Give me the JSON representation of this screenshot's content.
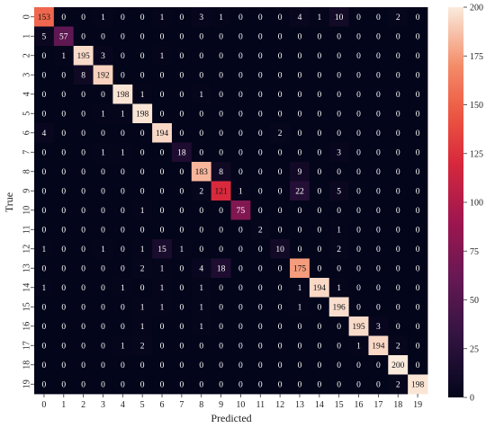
{
  "chart_data": {
    "type": "heatmap",
    "title": "",
    "xlabel": "Predicted",
    "ylabel": "True",
    "x_ticks": [
      "0",
      "1",
      "2",
      "3",
      "4",
      "5",
      "6",
      "7",
      "8",
      "9",
      "10",
      "11",
      "12",
      "13",
      "14",
      "15",
      "16",
      "17",
      "18",
      "19"
    ],
    "y_ticks": [
      "0",
      "1",
      "2",
      "3",
      "4",
      "5",
      "6",
      "7",
      "8",
      "9",
      "10",
      "11",
      "12",
      "13",
      "14",
      "15",
      "16",
      "17",
      "18",
      "19"
    ],
    "colorbar": {
      "min": 0,
      "max": 200,
      "ticks": [
        "0",
        "25",
        "50",
        "75",
        "100",
        "125",
        "150",
        "175",
        "200"
      ]
    },
    "colormap": "rocket",
    "matrix": [
      [
        153,
        0,
        0,
        1,
        0,
        0,
        1,
        0,
        3,
        1,
        0,
        0,
        0,
        4,
        1,
        10,
        0,
        0,
        2,
        0
      ],
      [
        5,
        57,
        0,
        0,
        0,
        0,
        0,
        0,
        0,
        0,
        0,
        0,
        0,
        0,
        0,
        0,
        0,
        0,
        0,
        0
      ],
      [
        0,
        1,
        195,
        3,
        0,
        0,
        1,
        0,
        0,
        0,
        0,
        0,
        0,
        0,
        0,
        0,
        0,
        0,
        0,
        0
      ],
      [
        0,
        0,
        8,
        192,
        0,
        0,
        0,
        0,
        0,
        0,
        0,
        0,
        0,
        0,
        0,
        0,
        0,
        0,
        0,
        0
      ],
      [
        0,
        0,
        0,
        0,
        198,
        1,
        0,
        0,
        1,
        0,
        0,
        0,
        0,
        0,
        0,
        0,
        0,
        0,
        0,
        0
      ],
      [
        0,
        0,
        0,
        1,
        1,
        198,
        0,
        0,
        0,
        0,
        0,
        0,
        0,
        0,
        0,
        0,
        0,
        0,
        0,
        0
      ],
      [
        4,
        0,
        0,
        0,
        0,
        0,
        194,
        0,
        0,
        0,
        0,
        0,
        2,
        0,
        0,
        0,
        0,
        0,
        0,
        0
      ],
      [
        0,
        0,
        0,
        1,
        1,
        0,
        0,
        18,
        0,
        0,
        0,
        0,
        0,
        0,
        0,
        3,
        0,
        0,
        0,
        0
      ],
      [
        0,
        0,
        0,
        0,
        0,
        0,
        0,
        0,
        183,
        8,
        0,
        0,
        0,
        9,
        0,
        0,
        0,
        0,
        0,
        0
      ],
      [
        0,
        0,
        0,
        0,
        0,
        0,
        0,
        0,
        2,
        121,
        1,
        0,
        0,
        22,
        0,
        5,
        0,
        0,
        0,
        0
      ],
      [
        0,
        0,
        0,
        0,
        0,
        1,
        0,
        0,
        0,
        0,
        75,
        0,
        0,
        0,
        0,
        0,
        0,
        0,
        0,
        0
      ],
      [
        0,
        0,
        0,
        0,
        0,
        0,
        0,
        0,
        0,
        0,
        0,
        2,
        0,
        0,
        0,
        1,
        0,
        0,
        0,
        0
      ],
      [
        1,
        0,
        0,
        1,
        0,
        1,
        15,
        1,
        0,
        0,
        0,
        0,
        10,
        0,
        0,
        2,
        0,
        0,
        0,
        0
      ],
      [
        0,
        0,
        0,
        0,
        0,
        2,
        1,
        0,
        4,
        18,
        0,
        0,
        0,
        175,
        0,
        0,
        0,
        0,
        0,
        0
      ],
      [
        1,
        0,
        0,
        0,
        1,
        0,
        1,
        0,
        1,
        0,
        0,
        0,
        0,
        1,
        194,
        1,
        0,
        0,
        0,
        0
      ],
      [
        0,
        0,
        0,
        0,
        0,
        1,
        1,
        0,
        1,
        0,
        0,
        0,
        0,
        1,
        0,
        196,
        0,
        0,
        0,
        0
      ],
      [
        0,
        0,
        0,
        0,
        0,
        1,
        0,
        0,
        1,
        0,
        0,
        0,
        0,
        0,
        0,
        0,
        195,
        3,
        0,
        0
      ],
      [
        0,
        0,
        0,
        0,
        1,
        2,
        0,
        0,
        0,
        0,
        0,
        0,
        0,
        0,
        0,
        0,
        1,
        194,
        2,
        0
      ],
      [
        0,
        0,
        0,
        0,
        0,
        0,
        0,
        0,
        0,
        0,
        0,
        0,
        0,
        0,
        0,
        0,
        0,
        0,
        200,
        0
      ],
      [
        0,
        0,
        0,
        0,
        0,
        0,
        0,
        0,
        0,
        0,
        0,
        0,
        0,
        0,
        0,
        0,
        0,
        0,
        2,
        198
      ]
    ]
  }
}
